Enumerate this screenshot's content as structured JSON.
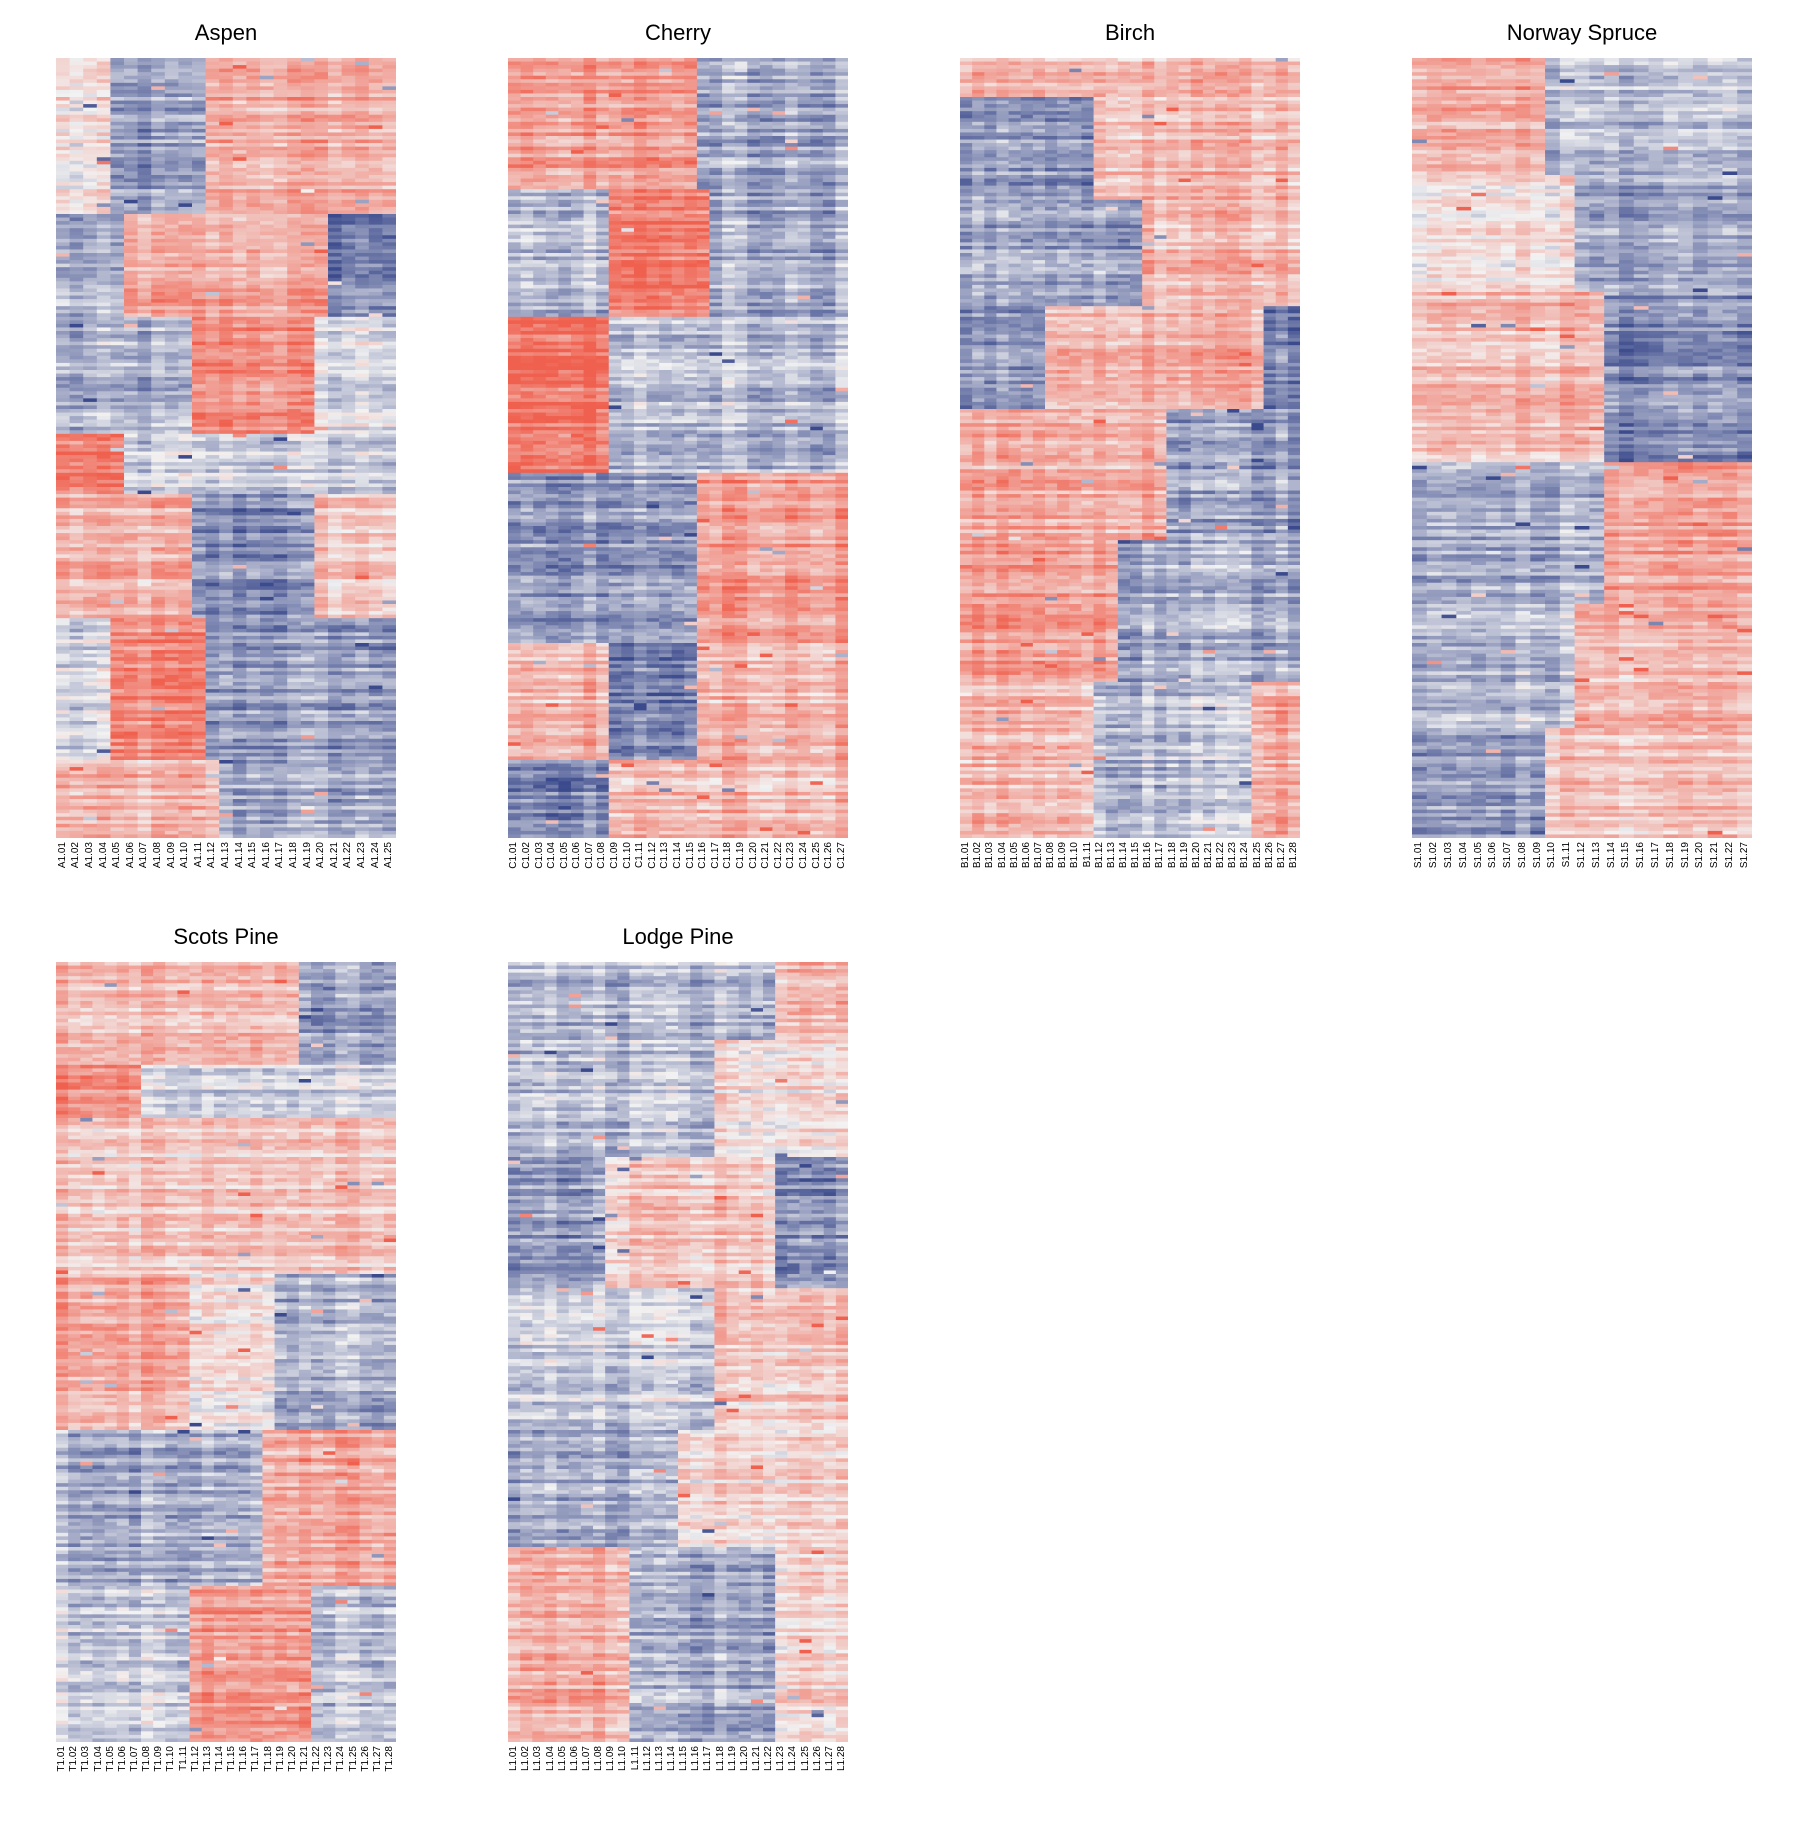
{
  "chart_data": [
    {
      "type": "heatmap",
      "title": "Aspen",
      "columns": [
        "A1.01",
        "A1.02",
        "A1.03",
        "A1.04",
        "A1.05",
        "A1.06",
        "A1.07",
        "A1.08",
        "A1.09",
        "A1.10",
        "A1.11",
        "A1.12",
        "A1.13",
        "A1.14",
        "A1.15",
        "A1.16",
        "A1.17",
        "A1.18",
        "A1.19",
        "A1.20",
        "A1.21",
        "A1.22",
        "A1.23",
        "A1.24",
        "A1.25"
      ],
      "color_scale": {
        "low": "#3b4a8c",
        "mid": "#f2f2f2",
        "high": "#f0604e"
      },
      "rows": 220,
      "blocks": [
        {
          "r0": 0.0,
          "r1": 0.2,
          "c0": 0.0,
          "c1": 0.15,
          "v": 0.1
        },
        {
          "r0": 0.0,
          "r1": 0.2,
          "c0": 0.15,
          "c1": 0.45,
          "v": -0.5
        },
        {
          "r0": 0.0,
          "r1": 0.2,
          "c0": 0.45,
          "c1": 1.0,
          "v": 0.5
        },
        {
          "r0": 0.2,
          "r1": 0.33,
          "c0": 0.0,
          "c1": 0.2,
          "v": -0.4
        },
        {
          "r0": 0.2,
          "r1": 0.33,
          "c0": 0.2,
          "c1": 0.8,
          "v": 0.5
        },
        {
          "r0": 0.2,
          "r1": 0.33,
          "c0": 0.8,
          "c1": 1.0,
          "v": -0.6
        },
        {
          "r0": 0.33,
          "r1": 0.48,
          "c0": 0.0,
          "c1": 0.4,
          "v": -0.4
        },
        {
          "r0": 0.33,
          "r1": 0.48,
          "c0": 0.4,
          "c1": 0.75,
          "v": 0.7
        },
        {
          "r0": 0.33,
          "r1": 0.48,
          "c0": 0.75,
          "c1": 1.0,
          "v": -0.1
        },
        {
          "r0": 0.48,
          "r1": 0.56,
          "c0": 0.0,
          "c1": 0.2,
          "v": 0.8
        },
        {
          "r0": 0.48,
          "r1": 0.56,
          "c0": 0.2,
          "c1": 1.0,
          "v": -0.2
        },
        {
          "r0": 0.56,
          "r1": 0.72,
          "c0": 0.0,
          "c1": 0.4,
          "v": 0.4
        },
        {
          "r0": 0.56,
          "r1": 0.72,
          "c0": 0.4,
          "c1": 0.75,
          "v": -0.6
        },
        {
          "r0": 0.56,
          "r1": 0.72,
          "c0": 0.75,
          "c1": 1.0,
          "v": 0.3
        },
        {
          "r0": 0.72,
          "r1": 0.9,
          "c0": 0.0,
          "c1": 0.15,
          "v": -0.2
        },
        {
          "r0": 0.72,
          "r1": 0.9,
          "c0": 0.15,
          "c1": 0.45,
          "v": 0.7
        },
        {
          "r0": 0.72,
          "r1": 0.9,
          "c0": 0.45,
          "c1": 1.0,
          "v": -0.5
        },
        {
          "r0": 0.9,
          "r1": 1.0,
          "c0": 0.0,
          "c1": 0.5,
          "v": 0.4
        },
        {
          "r0": 0.9,
          "r1": 1.0,
          "c0": 0.5,
          "c1": 1.0,
          "v": -0.4
        }
      ]
    },
    {
      "type": "heatmap",
      "title": "Cherry",
      "columns": [
        "C1.01",
        "C1.02",
        "C1.03",
        "C1.04",
        "C1.05",
        "C1.06",
        "C1.07",
        "C1.08",
        "C1.09",
        "C1.10",
        "C1.11",
        "C1.12",
        "C1.13",
        "C1.14",
        "C1.15",
        "C1.16",
        "C1.17",
        "C1.18",
        "C1.19",
        "C1.20",
        "C1.21",
        "C1.22",
        "C1.23",
        "C1.24",
        "C1.25",
        "C1.26",
        "C1.27"
      ],
      "color_scale": {
        "low": "#3b4a8c",
        "mid": "#f2f2f2",
        "high": "#f0604e"
      },
      "rows": 220,
      "blocks": [
        {
          "r0": 0.0,
          "r1": 0.17,
          "c0": 0.0,
          "c1": 0.55,
          "v": 0.6
        },
        {
          "r0": 0.0,
          "r1": 0.17,
          "c0": 0.55,
          "c1": 1.0,
          "v": -0.4
        },
        {
          "r0": 0.17,
          "r1": 0.33,
          "c0": 0.0,
          "c1": 0.3,
          "v": -0.3
        },
        {
          "r0": 0.17,
          "r1": 0.33,
          "c0": 0.3,
          "c1": 0.6,
          "v": 0.8
        },
        {
          "r0": 0.17,
          "r1": 0.33,
          "c0": 0.6,
          "c1": 1.0,
          "v": -0.4
        },
        {
          "r0": 0.33,
          "r1": 0.53,
          "c0": 0.0,
          "c1": 0.3,
          "v": 0.9
        },
        {
          "r0": 0.33,
          "r1": 0.53,
          "c0": 0.3,
          "c1": 1.0,
          "v": -0.3
        },
        {
          "r0": 0.53,
          "r1": 0.75,
          "c0": 0.0,
          "c1": 0.55,
          "v": -0.5
        },
        {
          "r0": 0.53,
          "r1": 0.75,
          "c0": 0.55,
          "c1": 1.0,
          "v": 0.6
        },
        {
          "r0": 0.75,
          "r1": 0.9,
          "c0": 0.0,
          "c1": 0.28,
          "v": 0.4
        },
        {
          "r0": 0.75,
          "r1": 0.9,
          "c0": 0.28,
          "c1": 0.55,
          "v": -0.7
        },
        {
          "r0": 0.75,
          "r1": 0.9,
          "c0": 0.55,
          "c1": 1.0,
          "v": 0.4
        },
        {
          "r0": 0.9,
          "r1": 1.0,
          "c0": 0.0,
          "c1": 0.3,
          "v": -0.6
        },
        {
          "r0": 0.9,
          "r1": 1.0,
          "c0": 0.3,
          "c1": 1.0,
          "v": 0.4
        }
      ]
    },
    {
      "type": "heatmap",
      "title": "Birch",
      "columns": [
        "B1.01",
        "B1.02",
        "B1.03",
        "B1.04",
        "B1.05",
        "B1.06",
        "B1.07",
        "B1.08",
        "B1.09",
        "B1.10",
        "B1.11",
        "B1.12",
        "B1.13",
        "B1.14",
        "B1.15",
        "B1.16",
        "B1.17",
        "B1.18",
        "B1.19",
        "B1.20",
        "B1.21",
        "B1.22",
        "B1.23",
        "B1.24",
        "B1.25",
        "B1.26",
        "B1.27",
        "B1.28"
      ],
      "color_scale": {
        "low": "#3b4a8c",
        "mid": "#f2f2f2",
        "high": "#f0604e"
      },
      "rows": 220,
      "blocks": [
        {
          "r0": 0.0,
          "r1": 0.05,
          "c0": 0.0,
          "c1": 1.0,
          "v": 0.4
        },
        {
          "r0": 0.05,
          "r1": 0.18,
          "c0": 0.0,
          "c1": 0.4,
          "v": -0.5
        },
        {
          "r0": 0.05,
          "r1": 0.18,
          "c0": 0.4,
          "c1": 1.0,
          "v": 0.4
        },
        {
          "r0": 0.18,
          "r1": 0.32,
          "c0": 0.0,
          "c1": 0.55,
          "v": -0.4
        },
        {
          "r0": 0.18,
          "r1": 0.32,
          "c0": 0.55,
          "c1": 1.0,
          "v": 0.4
        },
        {
          "r0": 0.32,
          "r1": 0.45,
          "c0": 0.0,
          "c1": 0.25,
          "v": -0.5
        },
        {
          "r0": 0.32,
          "r1": 0.45,
          "c0": 0.25,
          "c1": 0.9,
          "v": 0.5
        },
        {
          "r0": 0.32,
          "r1": 0.45,
          "c0": 0.9,
          "c1": 1.0,
          "v": -0.6
        },
        {
          "r0": 0.45,
          "r1": 0.62,
          "c0": 0.0,
          "c1": 0.6,
          "v": 0.5
        },
        {
          "r0": 0.45,
          "r1": 0.62,
          "c0": 0.6,
          "c1": 1.0,
          "v": -0.5
        },
        {
          "r0": 0.62,
          "r1": 0.8,
          "c0": 0.0,
          "c1": 0.45,
          "v": 0.6
        },
        {
          "r0": 0.62,
          "r1": 0.8,
          "c0": 0.45,
          "c1": 1.0,
          "v": -0.4
        },
        {
          "r0": 0.8,
          "r1": 1.0,
          "c0": 0.0,
          "c1": 0.4,
          "v": 0.4
        },
        {
          "r0": 0.8,
          "r1": 1.0,
          "c0": 0.4,
          "c1": 0.85,
          "v": -0.3
        },
        {
          "r0": 0.8,
          "r1": 1.0,
          "c0": 0.85,
          "c1": 1.0,
          "v": 0.5
        }
      ]
    },
    {
      "type": "heatmap",
      "title": "Norway Spruce",
      "columns": [
        "S1.01",
        "S1.02",
        "S1.03",
        "S1.04",
        "S1.05",
        "S1.06",
        "S1.07",
        "S1.08",
        "S1.09",
        "S1.10",
        "S1.11",
        "S1.12",
        "S1.13",
        "S1.14",
        "S1.15",
        "S1.16",
        "S1.17",
        "S1.18",
        "S1.19",
        "S1.20",
        "S1.21",
        "S1.22",
        "S1.27"
      ],
      "color_scale": {
        "low": "#3b4a8c",
        "mid": "#f2f2f2",
        "high": "#f0604e"
      },
      "rows": 220,
      "blocks": [
        {
          "r0": 0.0,
          "r1": 0.15,
          "c0": 0.0,
          "c1": 0.4,
          "v": 0.5
        },
        {
          "r0": 0.0,
          "r1": 0.15,
          "c0": 0.4,
          "c1": 1.0,
          "v": -0.3
        },
        {
          "r0": 0.15,
          "r1": 0.3,
          "c0": 0.0,
          "c1": 0.5,
          "v": 0.1
        },
        {
          "r0": 0.15,
          "r1": 0.3,
          "c0": 0.5,
          "c1": 1.0,
          "v": -0.5
        },
        {
          "r0": 0.3,
          "r1": 0.52,
          "c0": 0.0,
          "c1": 0.55,
          "v": 0.4
        },
        {
          "r0": 0.3,
          "r1": 0.52,
          "c0": 0.55,
          "c1": 1.0,
          "v": -0.6
        },
        {
          "r0": 0.52,
          "r1": 0.7,
          "c0": 0.0,
          "c1": 0.55,
          "v": -0.4
        },
        {
          "r0": 0.52,
          "r1": 0.7,
          "c0": 0.55,
          "c1": 1.0,
          "v": 0.5
        },
        {
          "r0": 0.7,
          "r1": 0.86,
          "c0": 0.0,
          "c1": 0.5,
          "v": -0.3
        },
        {
          "r0": 0.7,
          "r1": 0.86,
          "c0": 0.5,
          "c1": 1.0,
          "v": 0.4
        },
        {
          "r0": 0.86,
          "r1": 1.0,
          "c0": 0.0,
          "c1": 0.4,
          "v": -0.5
        },
        {
          "r0": 0.86,
          "r1": 1.0,
          "c0": 0.4,
          "c1": 1.0,
          "v": 0.3
        }
      ]
    },
    {
      "type": "heatmap",
      "title": "Scots Pine",
      "columns": [
        "T1.01",
        "T1.02",
        "T1.03",
        "T1.04",
        "T1.05",
        "T1.06",
        "T1.07",
        "T1.08",
        "T1.09",
        "T1.10",
        "T1.11",
        "T1.12",
        "T1.13",
        "T1.14",
        "T1.15",
        "T1.16",
        "T1.17",
        "T1.18",
        "T1.19",
        "T1.20",
        "T1.21",
        "T1.22",
        "T1.23",
        "T1.24",
        "T1.25",
        "T1.26",
        "T1.27",
        "T1.28"
      ],
      "color_scale": {
        "low": "#3b4a8c",
        "mid": "#f2f2f2",
        "high": "#f0604e"
      },
      "rows": 220,
      "blocks": [
        {
          "r0": 0.0,
          "r1": 0.13,
          "c0": 0.0,
          "c1": 0.7,
          "v": 0.4
        },
        {
          "r0": 0.0,
          "r1": 0.13,
          "c0": 0.7,
          "c1": 1.0,
          "v": -0.5
        },
        {
          "r0": 0.13,
          "r1": 0.2,
          "c0": 0.0,
          "c1": 0.25,
          "v": 0.7
        },
        {
          "r0": 0.13,
          "r1": 0.2,
          "c0": 0.25,
          "c1": 1.0,
          "v": -0.2
        },
        {
          "r0": 0.2,
          "r1": 0.4,
          "c0": 0.0,
          "c1": 1.0,
          "v": 0.3
        },
        {
          "r0": 0.4,
          "r1": 0.6,
          "c0": 0.0,
          "c1": 0.4,
          "v": 0.5
        },
        {
          "r0": 0.4,
          "r1": 0.6,
          "c0": 0.4,
          "c1": 0.65,
          "v": 0.1
        },
        {
          "r0": 0.4,
          "r1": 0.6,
          "c0": 0.65,
          "c1": 1.0,
          "v": -0.4
        },
        {
          "r0": 0.6,
          "r1": 0.8,
          "c0": 0.0,
          "c1": 0.6,
          "v": -0.4
        },
        {
          "r0": 0.6,
          "r1": 0.8,
          "c0": 0.6,
          "c1": 1.0,
          "v": 0.5
        },
        {
          "r0": 0.8,
          "r1": 1.0,
          "c0": 0.0,
          "c1": 0.4,
          "v": -0.2
        },
        {
          "r0": 0.8,
          "r1": 1.0,
          "c0": 0.4,
          "c1": 0.75,
          "v": 0.6
        },
        {
          "r0": 0.8,
          "r1": 1.0,
          "c0": 0.75,
          "c1": 1.0,
          "v": -0.3
        }
      ]
    },
    {
      "type": "heatmap",
      "title": "Lodge Pine",
      "columns": [
        "L1.01",
        "L1.02",
        "L1.03",
        "L1.04",
        "L1.05",
        "L1.06",
        "L1.07",
        "L1.08",
        "L1.09",
        "L1.10",
        "L1.11",
        "L1.12",
        "L1.13",
        "L1.14",
        "L1.15",
        "L1.16",
        "L1.17",
        "L1.18",
        "L1.19",
        "L1.20",
        "L1.21",
        "L1.22",
        "L1.23",
        "L1.24",
        "L1.25",
        "L1.26",
        "L1.27",
        "L1.28"
      ],
      "color_scale": {
        "low": "#3b4a8c",
        "mid": "#f2f2f2",
        "high": "#f0604e"
      },
      "rows": 220,
      "blocks": [
        {
          "r0": 0.0,
          "r1": 0.1,
          "c0": 0.0,
          "c1": 0.8,
          "v": -0.3
        },
        {
          "r0": 0.0,
          "r1": 0.1,
          "c0": 0.8,
          "c1": 1.0,
          "v": 0.4
        },
        {
          "r0": 0.1,
          "r1": 0.25,
          "c0": 0.0,
          "c1": 0.6,
          "v": -0.3
        },
        {
          "r0": 0.1,
          "r1": 0.25,
          "c0": 0.6,
          "c1": 1.0,
          "v": 0.1
        },
        {
          "r0": 0.25,
          "r1": 0.42,
          "c0": 0.0,
          "c1": 0.3,
          "v": -0.5
        },
        {
          "r0": 0.25,
          "r1": 0.42,
          "c0": 0.3,
          "c1": 0.8,
          "v": 0.3
        },
        {
          "r0": 0.25,
          "r1": 0.42,
          "c0": 0.8,
          "c1": 1.0,
          "v": -0.6
        },
        {
          "r0": 0.42,
          "r1": 0.6,
          "c0": 0.0,
          "c1": 0.6,
          "v": -0.2
        },
        {
          "r0": 0.42,
          "r1": 0.6,
          "c0": 0.6,
          "c1": 1.0,
          "v": 0.3
        },
        {
          "r0": 0.6,
          "r1": 0.75,
          "c0": 0.0,
          "c1": 0.5,
          "v": -0.4
        },
        {
          "r0": 0.6,
          "r1": 0.75,
          "c0": 0.5,
          "c1": 1.0,
          "v": 0.2
        },
        {
          "r0": 0.75,
          "r1": 1.0,
          "c0": 0.0,
          "c1": 0.35,
          "v": 0.5
        },
        {
          "r0": 0.75,
          "r1": 1.0,
          "c0": 0.35,
          "c1": 0.8,
          "v": -0.4
        },
        {
          "r0": 0.75,
          "r1": 1.0,
          "c0": 0.8,
          "c1": 1.0,
          "v": 0.2
        }
      ]
    }
  ]
}
